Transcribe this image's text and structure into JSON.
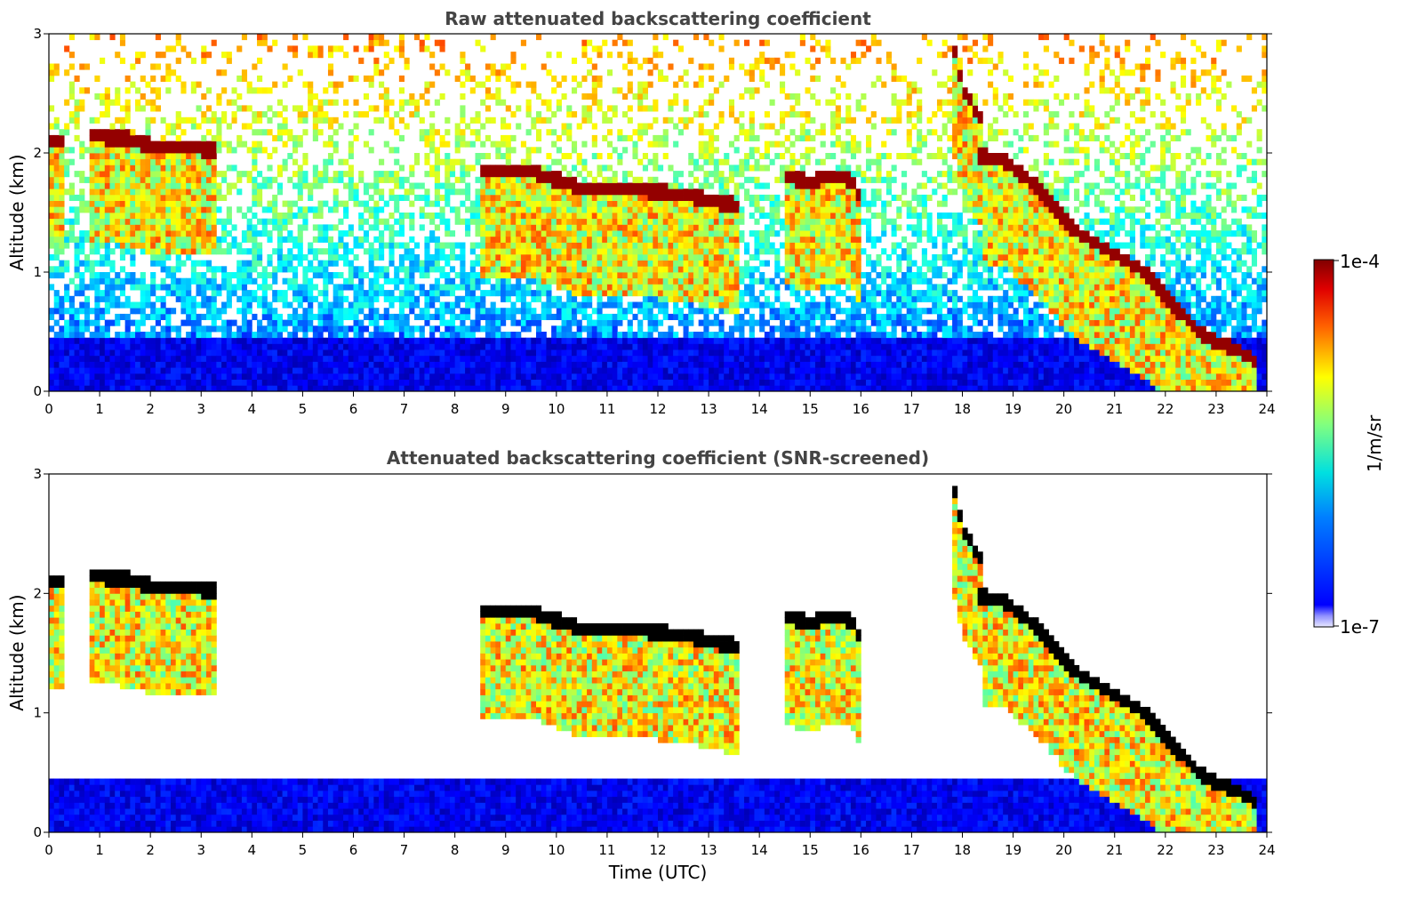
{
  "chart_data": [
    {
      "type": "heatmap",
      "title": "Raw attenuated backscattering coefficient",
      "xlabel": "",
      "ylabel": "Altitude (km)",
      "xlim": [
        0,
        24
      ],
      "ylim": [
        0,
        3
      ],
      "xticks": [
        "0",
        "1",
        "2",
        "3",
        "4",
        "5",
        "6",
        "7",
        "8",
        "9",
        "10",
        "11",
        "12",
        "13",
        "14",
        "15",
        "16",
        "17",
        "18",
        "19",
        "20",
        "21",
        "22",
        "23",
        "24"
      ],
      "yticks": [
        "0",
        "1",
        "2",
        "3"
      ],
      "screened": false,
      "cloud_layers": [
        {
          "t": [
            0.0,
            0.3
          ],
          "h": [
            2.1,
            2.1
          ]
        },
        {
          "t": [
            0.8,
            1.5,
            2.2,
            3.3
          ],
          "h": [
            2.15,
            2.12,
            2.05,
            2.03
          ]
        },
        {
          "t": [
            8.5,
            9.5,
            10.5,
            11.5,
            12.5,
            13.3,
            13.6
          ],
          "h": [
            1.85,
            1.85,
            1.7,
            1.7,
            1.65,
            1.58,
            1.55
          ]
        },
        {
          "t": [
            14.5,
            15.0,
            15.3,
            15.8,
            16.0
          ],
          "h": [
            1.8,
            1.75,
            1.8,
            1.78,
            1.6
          ]
        },
        {
          "t": [
            17.8,
            18.0,
            18.2,
            18.4
          ],
          "h": [
            2.95,
            2.55,
            2.4,
            2.25
          ]
        },
        {
          "t": [
            18.3,
            18.8,
            19.5,
            20.2,
            21.0,
            21.6,
            22.2,
            22.8,
            23.4,
            23.8
          ],
          "h": [
            1.98,
            1.95,
            1.7,
            1.35,
            1.15,
            1.0,
            0.7,
            0.45,
            0.35,
            0.25
          ]
        }
      ]
    },
    {
      "type": "heatmap",
      "title": "Attenuated backscattering coefficient (SNR-screened)",
      "xlabel": "Time (UTC)",
      "ylabel": "Altitude (km)",
      "xlim": [
        0,
        24
      ],
      "ylim": [
        0,
        3
      ],
      "xticks": [
        "0",
        "1",
        "2",
        "3",
        "4",
        "5",
        "6",
        "7",
        "8",
        "9",
        "10",
        "11",
        "12",
        "13",
        "14",
        "15",
        "16",
        "17",
        "18",
        "19",
        "20",
        "21",
        "22",
        "23",
        "24"
      ],
      "yticks": [
        "0",
        "1",
        "2",
        "3"
      ],
      "screened": true
    }
  ],
  "colorbar": {
    "label": "1/m/sr",
    "min_label": "1e-7",
    "max_label": "1e-4",
    "colormap": "jet"
  }
}
